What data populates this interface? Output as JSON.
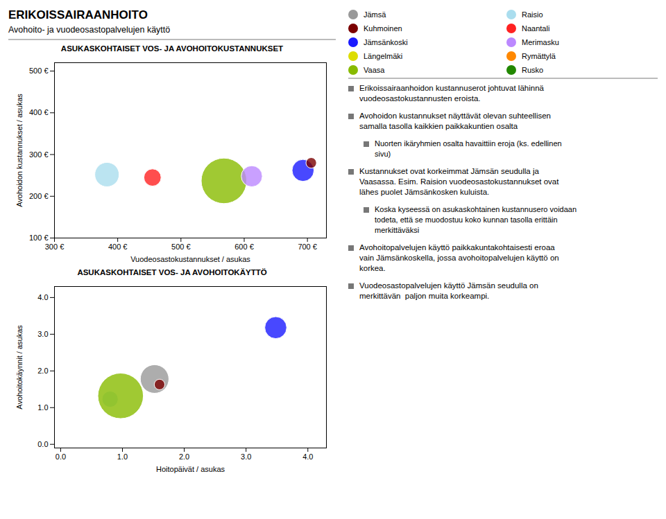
{
  "title": "ERIKOISSAIRAANHOITO",
  "subtitle": "Avohoito- ja vuodeosastopalvelujen käyttö",
  "legend": "top-right",
  "series": [
    {
      "name": "Jämsä",
      "color": "#999999"
    },
    {
      "name": "Kuhmoinen",
      "color": "#7b0000"
    },
    {
      "name": "Jämsänkoski",
      "color": "#1a1aff"
    },
    {
      "name": "Längelmäki",
      "color": "#dddd00"
    },
    {
      "name": "Vaasa",
      "color": "#88bb00"
    },
    {
      "name": "Raisio",
      "color": "#aaddee"
    },
    {
      "name": "Naantali",
      "color": "#ff2222"
    },
    {
      "name": "Merimasku",
      "color": "#bb88ff"
    },
    {
      "name": "Rymättylä",
      "color": "#ff8800"
    },
    {
      "name": "Rusko",
      "color": "#228800"
    }
  ],
  "annotations": [
    {
      "indent": 0,
      "text": "Erikoissairaanhoidon kustannuserot johtuvat lähinnä\nvuodeosastokustannusten eroista."
    },
    {
      "indent": 0,
      "text": "Avohoidon kustannukset näyttävät olevan suhteellisen\nsamalla tasolla kaikkien paikkakuntien osalta"
    },
    {
      "indent": 1,
      "text": "Nuorten ikäryhmien osalta havaittiin eroja (ks. edellinen\nsivu)"
    },
    {
      "indent": 0,
      "text": "Kustannukset ovat korkeimmat Jämsän seudulla ja\nVaasassa. Esim. Raision vuodeosastokustannukset ovat\nlähes puolet Jämsänkosken kuluista."
    },
    {
      "indent": 1,
      "text": "Koska kyseessä on asukaskohtainen kustannusero voidaan\ntodeta, että se muodostuu koko kunnan tasolla erittäin\nmerkittäväksi"
    },
    {
      "indent": 0,
      "text": "Avohoitopalvelujen käyttö paikkakuntakohtaisesti eroaa\nvain Jämsänkoskella, jossa avohoitopalvelujen käyttö on\nkorkea."
    },
    {
      "indent": 0,
      "text": "Vuodeosastopalvelujen käyttö Jämsän seudulla on\nmerkittävän  paljon muita korkeampi."
    }
  ],
  "chart_data": [
    {
      "type": "scatter",
      "title": "ASUKASKOHTAISET VOS- JA AVOHOITOKUSTANNUKSET",
      "xlabel": "Vuodeosastokustannukset / asukas",
      "ylabel": "Avohoidon kustannukset / asukas",
      "xlim": [
        300,
        730
      ],
      "ylim": [
        100,
        520
      ],
      "xticks": [
        {
          "value": 300,
          "label": "300 €"
        },
        {
          "value": 400,
          "label": "400 €"
        },
        {
          "value": 500,
          "label": "500 €"
        },
        {
          "value": 600,
          "label": "600 €"
        },
        {
          "value": 700,
          "label": "700 €"
        }
      ],
      "yticks": [
        {
          "value": 100,
          "label": "100 €"
        },
        {
          "value": 200,
          "label": "200 €"
        },
        {
          "value": 300,
          "label": "300 €"
        },
        {
          "value": 400,
          "label": "400 €"
        },
        {
          "value": 500,
          "label": "500 €"
        }
      ],
      "grid": false,
      "series": [
        {
          "name": "Raisio",
          "color": "#aaddee",
          "x": [
            383
          ],
          "values": [
            252
          ],
          "sizes": [
            800
          ]
        },
        {
          "name": "Naantali",
          "color": "#ff2222",
          "x": [
            455
          ],
          "values": [
            245
          ],
          "sizes": [
            400
          ]
        },
        {
          "name": "Vaasa",
          "color": "#88bb00",
          "x": [
            568
          ],
          "values": [
            237
          ],
          "sizes": [
            2800
          ]
        },
        {
          "name": "Merimasku",
          "color": "#bb88ff",
          "x": [
            612
          ],
          "values": [
            248
          ],
          "sizes": [
            600
          ]
        },
        {
          "name": "Jämsänkoski",
          "color": "#1a1aff",
          "x": [
            693
          ],
          "values": [
            262
          ],
          "sizes": [
            650
          ]
        },
        {
          "name": "Kuhmoinen",
          "color": "#7b0000",
          "x": [
            706
          ],
          "values": [
            280
          ],
          "sizes": [
            150
          ]
        }
      ]
    },
    {
      "type": "scatter",
      "title": "ASUKASKOHTAISET VOS- JA AVOHOITOKÄYTTÖ",
      "xlabel": "Hoitopäivät / asukas",
      "ylabel": "Avohoitokäynnit / asukas",
      "xlim": [
        -0.1,
        4.3
      ],
      "ylim": [
        -0.1,
        4.3
      ],
      "xticks": [
        {
          "value": 0.0,
          "label": "0.0"
        },
        {
          "value": 1.0,
          "label": "1.0"
        },
        {
          "value": 2.0,
          "label": "2.0"
        },
        {
          "value": 3.0,
          "label": "3.0"
        },
        {
          "value": 4.0,
          "label": "4.0"
        }
      ],
      "yticks": [
        {
          "value": 0.0,
          "label": "0.0"
        },
        {
          "value": 1.0,
          "label": "1.0"
        },
        {
          "value": 2.0,
          "label": "2.0"
        },
        {
          "value": 3.0,
          "label": "3.0"
        },
        {
          "value": 4.0,
          "label": "4.0"
        }
      ],
      "grid": false,
      "series": [
        {
          "name": "Raisio",
          "color": "#aaddee",
          "x": [
            0.8
          ],
          "values": [
            1.23
          ],
          "sizes": [
            350
          ]
        },
        {
          "name": "Vaasa",
          "color": "#88bb00",
          "x": [
            0.97
          ],
          "values": [
            1.32
          ],
          "sizes": [
            2800
          ]
        },
        {
          "name": "Jämsä",
          "color": "#999999",
          "x": [
            1.52
          ],
          "values": [
            1.78
          ],
          "sizes": [
            1100
          ]
        },
        {
          "name": "Kuhmoinen",
          "color": "#7b0000",
          "x": [
            1.6
          ],
          "values": [
            1.63
          ],
          "sizes": [
            150
          ]
        },
        {
          "name": "Jämsänkoski",
          "color": "#1a1aff",
          "x": [
            3.48
          ],
          "values": [
            3.18
          ],
          "sizes": [
            650
          ]
        }
      ]
    }
  ]
}
